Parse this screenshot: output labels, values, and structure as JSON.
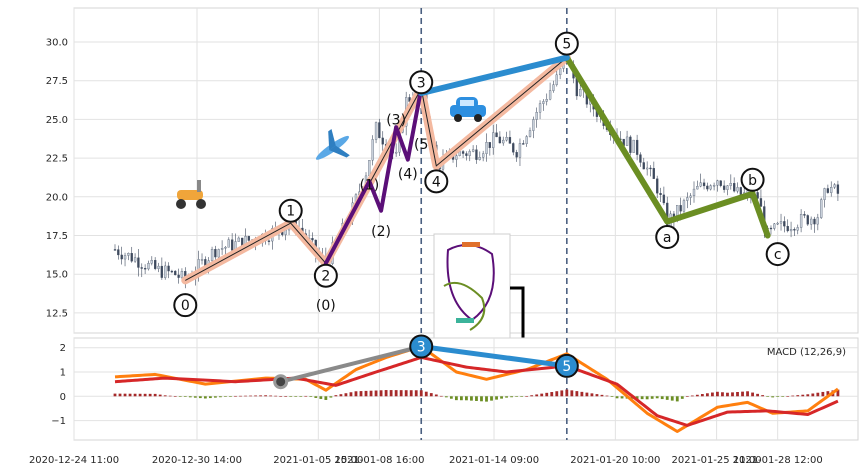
{
  "chart_data": [
    {
      "type": "candlestick",
      "panel": "price",
      "xlim": [
        "2020-12-24 11:00",
        "2021-02-01 12:00"
      ],
      "ylim": [
        11.2,
        32.2
      ],
      "yticks": [
        "12.5",
        "15.0",
        "17.5",
        "20.0",
        "22.5",
        "25.0",
        "27.5",
        "30.0"
      ],
      "grid": true,
      "candle_colors": {
        "up": "#c8d0da",
        "down": "#3e4a5e"
      },
      "price_path": [
        [
          "2020-12-26 12:00",
          16.6
        ],
        [
          "2020-12-27 12:00",
          16.0
        ],
        [
          "2020-12-28 12:00",
          15.3
        ],
        [
          "2020-12-29 12:00",
          15.0
        ],
        [
          "2020-12-30 00:00",
          14.6
        ],
        [
          "2020-12-31 12:00",
          16.6
        ],
        [
          "2021-01-02 12:00",
          17.3
        ],
        [
          "2021-01-03 12:00",
          17.8
        ],
        [
          "2021-01-04 12:00",
          18.3
        ],
        [
          "2021-01-05 12:00",
          16.4
        ],
        [
          "2021-01-06 00:00",
          15.7
        ],
        [
          "2021-01-07 06:00",
          18.9
        ],
        [
          "2021-01-08 00:00",
          21.6
        ],
        [
          "2021-01-08 12:00",
          24.4
        ],
        [
          "2021-01-09 12:00",
          22.5
        ],
        [
          "2021-01-10 00:00",
          26.2
        ],
        [
          "2021-01-10 18:00",
          27.0
        ],
        [
          "2021-01-11 12:00",
          22.0
        ],
        [
          "2021-01-12 12:00",
          22.8
        ],
        [
          "2021-01-13 12:00",
          22.9
        ],
        [
          "2021-01-14 12:00",
          23.8
        ],
        [
          "2021-01-15 12:00",
          23.0
        ],
        [
          "2021-01-16 12:00",
          25.5
        ],
        [
          "2021-01-17 12:00",
          27.6
        ],
        [
          "2021-01-18 00:00",
          29.0
        ],
        [
          "2021-01-18 12:00",
          27.0
        ],
        [
          "2021-01-19 12:00",
          25.5
        ],
        [
          "2021-01-20 12:00",
          24.0
        ],
        [
          "2021-01-21 12:00",
          23.0
        ],
        [
          "2021-01-22 12:00",
          20.6
        ],
        [
          "2021-01-23 00:00",
          18.4
        ],
        [
          "2021-01-23 12:00",
          19.0
        ],
        [
          "2021-01-24 12:00",
          20.5
        ],
        [
          "2021-01-25 12:00",
          21.2
        ],
        [
          "2021-01-26 12:00",
          20.2
        ],
        [
          "2021-01-27 12:00",
          20.0
        ],
        [
          "2021-01-28 00:00",
          17.5
        ],
        [
          "2021-01-28 12:00",
          18.0
        ],
        [
          "2021-01-29 12:00",
          18.4
        ],
        [
          "2021-01-30 12:00",
          18.8
        ],
        [
          "2021-01-31 00:00",
          20.7
        ],
        [
          "2021-01-31 12:00",
          20.2
        ]
      ],
      "waves": [
        {
          "color": "#f4b9a0",
          "points": [
            [
              "2020-12-30 00:00",
              14.6
            ],
            [
              "2021-01-04 06:00",
              18.3
            ],
            [
              "2021-01-06 00:00",
              15.7
            ],
            [
              "2021-01-10 18:00",
              27.0
            ],
            [
              "2021-01-11 12:00",
              22.0
            ],
            [
              "2021-01-18 00:00",
              29.0
            ]
          ]
        },
        {
          "color": "#5b0f78",
          "points": [
            [
              "2021-01-06 00:00",
              15.7
            ],
            [
              "2021-01-08 04:00",
              21.0
            ],
            [
              "2021-01-08 18:00",
              19.1
            ],
            [
              "2021-01-09 12:00",
              24.5
            ],
            [
              "2021-01-10 02:00",
              22.4
            ],
            [
              "2021-01-10 18:00",
              27.0
            ]
          ]
        },
        {
          "color": "#6b8e23",
          "points": [
            [
              "2021-01-18 00:00",
              29.0
            ],
            [
              "2021-01-23 00:00",
              18.4
            ],
            [
              "2021-01-27 06:00",
              20.2
            ],
            [
              "2021-01-28 00:00",
              17.5
            ]
          ]
        },
        {
          "color": "#2b8ccf",
          "points": [
            [
              "2021-01-10 18:00",
              26.7
            ],
            [
              "2021-01-18 00:00",
              29.0
            ]
          ]
        }
      ],
      "wave_labels": [
        {
          "text": "0",
          "x": "2020-12-30 00:00",
          "y": 13.0,
          "circled": true
        },
        {
          "text": "1",
          "x": "2021-01-04 06:00",
          "y": 19.1,
          "circled": true
        },
        {
          "text": "2",
          "x": "2021-01-06 00:00",
          "y": 14.9,
          "circled": true
        },
        {
          "text": "3",
          "x": "2021-01-10 18:00",
          "y": 27.4,
          "circled": true
        },
        {
          "text": "4",
          "x": "2021-01-11 12:00",
          "y": 21.0,
          "circled": true
        },
        {
          "text": "5",
          "x": "2021-01-18 00:00",
          "y": 29.9,
          "circled": true
        },
        {
          "text": "a",
          "x": "2021-01-23 00:00",
          "y": 17.4,
          "circled": true
        },
        {
          "text": "b",
          "x": "2021-01-27 06:00",
          "y": 21.1,
          "circled": true
        },
        {
          "text": "c",
          "x": "2021-01-28 12:00",
          "y": 16.3,
          "circled": true
        },
        {
          "text": "(0)",
          "x": "2021-01-06 00:00",
          "y": 13.0,
          "circled": false
        },
        {
          "text": "(1)",
          "x": "2021-01-08 04:00",
          "y": 20.8,
          "circled": false
        },
        {
          "text": "(2)",
          "x": "2021-01-08 18:00",
          "y": 17.8,
          "circled": false
        },
        {
          "text": "(3)",
          "x": "2021-01-09 12:00",
          "y": 25.0,
          "circled": false
        },
        {
          "text": "(4)",
          "x": "2021-01-10 02:00",
          "y": 21.5,
          "circled": false
        },
        {
          "text": "(5",
          "x": "2021-01-10 18:00",
          "y": 23.4,
          "circled": false
        }
      ],
      "vlines": [
        "2021-01-10 18:00",
        "2021-01-18 00:00"
      ],
      "icons": [
        "scooter-icon",
        "airplane-icon",
        "car-icon",
        "roller-coaster-icon"
      ]
    },
    {
      "type": "macd",
      "panel": "indicator",
      "legend_label": "MACD (12,26,9)",
      "legend_placement": "top-right",
      "ylim": [
        -1.8,
        2.4
      ],
      "yticks": [
        "2",
        "1",
        "0",
        "−1"
      ],
      "xticks": [
        "2020-12-24 11:00",
        "2020-12-30 14:00",
        "2021-01-05 15:00",
        "2021-01-08 16:00",
        "2021-01-14 09:00",
        "2021-01-20 10:00",
        "2021-01-25 11:00",
        "2021-01-28 12:00"
      ],
      "series": [
        {
          "color": "#ff7f0e",
          "values": [
            [
              "2020-12-26 12:00",
              0.8
            ],
            [
              "2020-12-28 12:00",
              0.9
            ],
            [
              "2020-12-31 00:00",
              0.5
            ],
            [
              "2021-01-03 00:00",
              0.75
            ],
            [
              "2021-01-05 00:00",
              0.7
            ],
            [
              "2021-01-06 00:00",
              0.25
            ],
            [
              "2021-01-07 12:00",
              1.1
            ],
            [
              "2021-01-09 00:00",
              1.6
            ],
            [
              "2021-01-10 18:00",
              2.05
            ],
            [
              "2021-01-12 12:00",
              1.0
            ],
            [
              "2021-01-14 00:00",
              0.7
            ],
            [
              "2021-01-16 00:00",
              1.1
            ],
            [
              "2021-01-18 00:00",
              1.75
            ],
            [
              "2021-01-20 00:00",
              0.7
            ],
            [
              "2021-01-22 00:00",
              -0.7
            ],
            [
              "2021-01-23 12:00",
              -1.45
            ],
            [
              "2021-01-25 12:00",
              -0.45
            ],
            [
              "2021-01-27 00:00",
              -0.25
            ],
            [
              "2021-01-28 06:00",
              -0.7
            ],
            [
              "2021-01-30 00:00",
              -0.6
            ],
            [
              "2021-01-31 12:00",
              0.3
            ]
          ]
        },
        {
          "color": "#d62728",
          "values": [
            [
              "2020-12-26 12:00",
              0.6
            ],
            [
              "2020-12-29 00:00",
              0.75
            ],
            [
              "2021-01-01 12:00",
              0.6
            ],
            [
              "2021-01-04 12:00",
              0.75
            ],
            [
              "2021-01-06 12:00",
              0.45
            ],
            [
              "2021-01-08 12:00",
              1.0
            ],
            [
              "2021-01-10 18:00",
              1.6
            ],
            [
              "2021-01-13 00:00",
              1.2
            ],
            [
              "2021-01-15 00:00",
              1.0
            ],
            [
              "2021-01-18 00:00",
              1.25
            ],
            [
              "2021-01-20 12:00",
              0.5
            ],
            [
              "2021-01-22 12:00",
              -0.8
            ],
            [
              "2021-01-24 00:00",
              -1.2
            ],
            [
              "2021-01-26 00:00",
              -0.65
            ],
            [
              "2021-01-28 00:00",
              -0.6
            ],
            [
              "2021-01-30 00:00",
              -0.75
            ],
            [
              "2021-01-31 12:00",
              -0.2
            ]
          ]
        }
      ],
      "histogram_colors": {
        "positive": "#a52a2a",
        "negative": "#6b8e23"
      },
      "markers": [
        {
          "text": "",
          "x": "2021-01-03 18:00",
          "y": 0.6
        },
        {
          "text": "3",
          "x": "2021-01-10 18:00",
          "y": 2.05
        },
        {
          "text": "5",
          "x": "2021-01-18 00:00",
          "y": 1.25
        }
      ]
    }
  ]
}
